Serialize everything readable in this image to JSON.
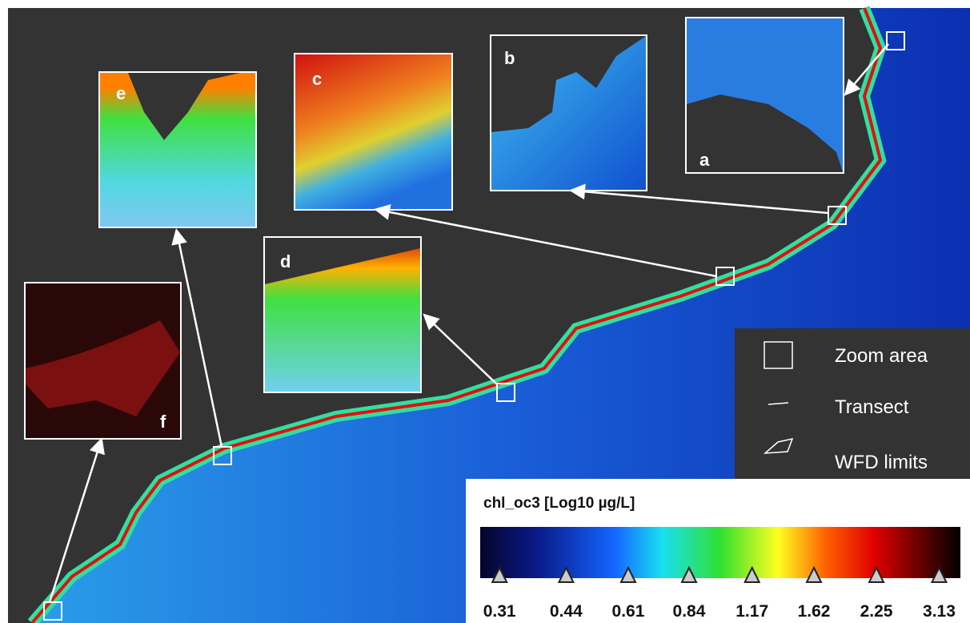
{
  "panels": {
    "a": "a",
    "b": "b",
    "c": "c",
    "d": "d",
    "e": "e",
    "f": "f"
  },
  "legend": {
    "zoom": "Zoom area",
    "transect": "Transect",
    "wfd": "WFD limits"
  },
  "colorbar": {
    "title": "chl_oc3 [Log10 µg/L]",
    "log_scale": true,
    "lim": [
      0.28,
      3.5
    ],
    "ticks": [
      0.31,
      0.44,
      0.61,
      0.84,
      1.17,
      1.62,
      2.25,
      3.13
    ]
  }
}
